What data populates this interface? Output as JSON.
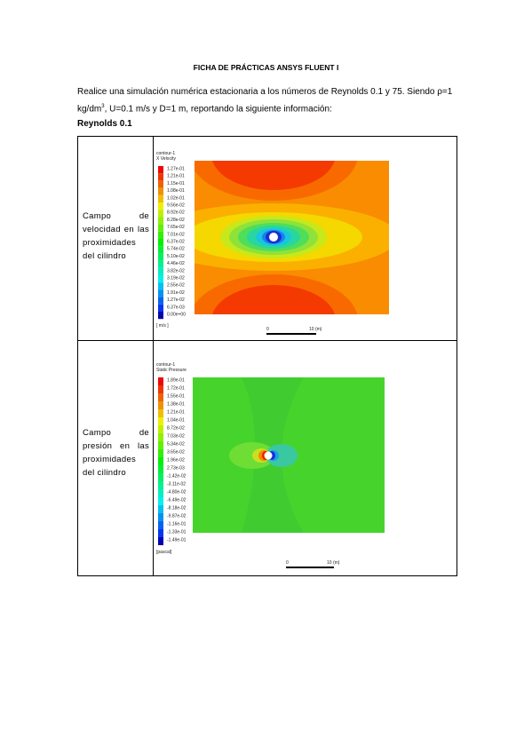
{
  "header": {
    "title": "FICHA DE PRÁCTICAS ANSYS FLUENT I"
  },
  "intro": {
    "text_before": "Realice una simulación numérica estacionaria a los números de Reynolds 0.1 y 75. Siendo ρ=1 kg/dm",
    "superscript": "3",
    "text_after": ", U=0.1 m/s y D=1 m, reportando la siguiente información:"
  },
  "section": {
    "heading": "Reynolds 0.1"
  },
  "table": {
    "rows": [
      {
        "label": "Campo de velocidad en las proximidades del cilindro",
        "figure": {
          "name": "contour-1",
          "variable": "X Velocity",
          "units": "[ m/s ]",
          "scale_start": "0",
          "scale_end": "10 (m)",
          "legend": [
            "1.27e-01",
            "1.21e-01",
            "1.15e-01",
            "1.08e-01",
            "1.02e-01",
            "9.56e-02",
            "8.92e-02",
            "8.28e-02",
            "7.65e-02",
            "7.01e-02",
            "6.37e-02",
            "5.74e-02",
            "5.10e-02",
            "4.46e-02",
            "3.82e-02",
            "3.19e-02",
            "2.55e-02",
            "1.91e-02",
            "1.27e-02",
            "6.37e-03",
            "0.00e+00"
          ]
        }
      },
      {
        "label": "Campo de presión en las proximidades del cilindro",
        "figure": {
          "name": "contour-1",
          "variable": "Static Pressure",
          "units": "[pascal]",
          "scale_start": "0",
          "scale_end": "10 (m)",
          "legend": [
            "1.89e-01",
            "1.72e-01",
            "1.55e-01",
            "1.38e-01",
            "1.21e-01",
            "1.04e-01",
            "8.72e-02",
            "7.03e-02",
            "5.34e-02",
            "3.65e-02",
            "1.96e-02",
            "2.73e-03",
            "-1.42e-02",
            "-3.11e-02",
            "-4.80e-02",
            "-6.49e-02",
            "-8.18e-02",
            "-9.87e-02",
            "-1.16e-01",
            "-1.33e-01",
            "-1.49e-01"
          ]
        }
      }
    ]
  }
}
